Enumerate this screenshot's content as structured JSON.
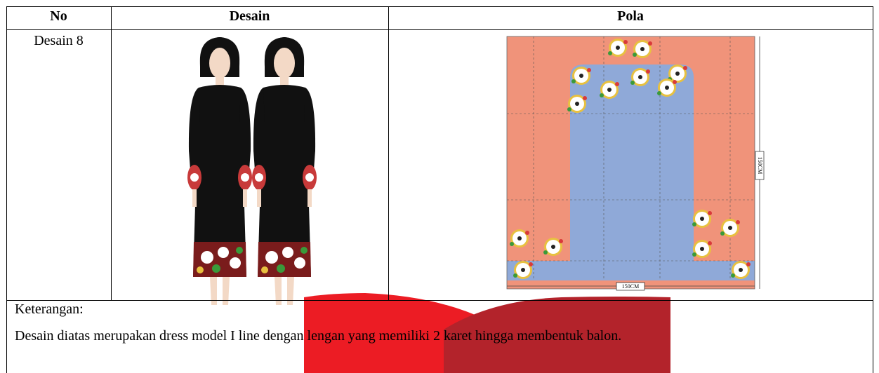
{
  "table": {
    "header": [
      "No",
      "Desain",
      "Pola"
    ],
    "rows": [
      [
        "Desain 8"
      ]
    ],
    "pattern": {
      "side_label": "150CM",
      "bottom_label": "150CM"
    },
    "note": {
      "title": "Keterangan:",
      "text": "Desain diatas merupakan dress model I line dengan lengan yang memiliki 2 karet hingga membentuk balon."
    }
  }
}
